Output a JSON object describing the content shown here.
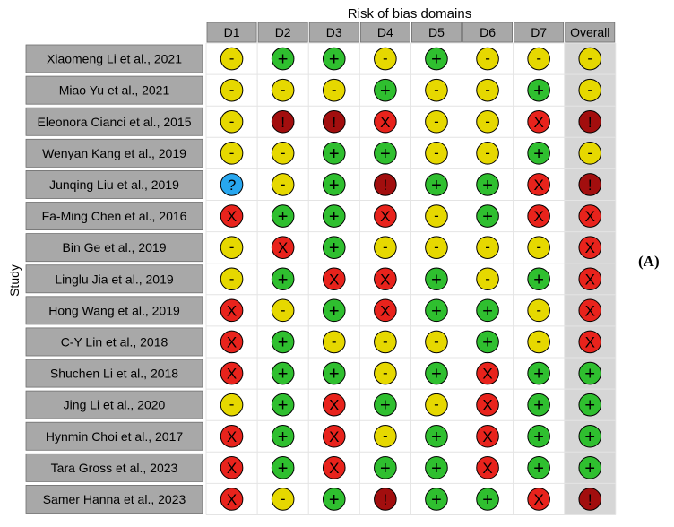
{
  "panel_label": "(A)",
  "chart_data": {
    "type": "table",
    "title": "Risk of bias domains",
    "ylabel": "Study",
    "columns": [
      "D1",
      "D2",
      "D3",
      "D4",
      "D5",
      "D6",
      "D7",
      "Overall"
    ],
    "studies": [
      "Xiaomeng Li et al., 2021",
      "Miao Yu et al., 2021",
      "Eleonora Cianci et al., 2015",
      "Wenyan Kang et al., 2019",
      "Junqing Liu et al., 2019",
      "Fa-Ming Chen et al., 2016",
      "Bin Ge et al., 2019",
      "Linglu Jia et al., 2019",
      "Hong Wang et al., 2019",
      "C-Y Lin et al., 2018",
      "Shuchen Li et al., 2018",
      "Jing Li et al., 2020",
      "Hynmin Choi et al., 2017",
      "Tara Gross et al., 2023",
      "Samer Hanna et al., 2023"
    ],
    "judgements": [
      [
        "-",
        "+",
        "+",
        "-",
        "+",
        "-",
        "-",
        "-"
      ],
      [
        "-",
        "-",
        "-",
        "+",
        "-",
        "-",
        "+",
        "-"
      ],
      [
        "-",
        "!",
        "!",
        "X",
        "-",
        "-",
        "X",
        "!"
      ],
      [
        "-",
        "-",
        "+",
        "+",
        "-",
        "-",
        "+",
        "-"
      ],
      [
        "?",
        "-",
        "+",
        "!",
        "+",
        "+",
        "X",
        "!"
      ],
      [
        "X",
        "+",
        "+",
        "X",
        "-",
        "+",
        "X",
        "X"
      ],
      [
        "-",
        "X",
        "+",
        "-",
        "-",
        "-",
        "-",
        "X"
      ],
      [
        "-",
        "+",
        "X",
        "X",
        "+",
        "-",
        "+",
        "X"
      ],
      [
        "X",
        "-",
        "+",
        "X",
        "+",
        "+",
        "-",
        "X"
      ],
      [
        "X",
        "+",
        "-",
        "-",
        "-",
        "+",
        "-",
        "X"
      ],
      [
        "X",
        "+",
        "+",
        "-",
        "+",
        "X",
        "+",
        "+"
      ],
      [
        "-",
        "+",
        "X",
        "+",
        "-",
        "X",
        "+",
        "+"
      ],
      [
        "X",
        "+",
        "X",
        "-",
        "+",
        "X",
        "+",
        "+"
      ],
      [
        "X",
        "+",
        "X",
        "+",
        "+",
        "X",
        "+",
        "+"
      ],
      [
        "X",
        "-",
        "+",
        "!",
        "+",
        "+",
        "X",
        "!"
      ]
    ],
    "colors": {
      "+": "#2fbf2f",
      "-": "#e6d800",
      "X": "#e8231c",
      "!": "#a20e0e",
      "?": "#28a7ef",
      "header_fill": "#a8a8a8",
      "study_fill": "#a8a8a8",
      "overall_fill": "#d6d6d6",
      "grid": "#e4e4e4"
    }
  }
}
